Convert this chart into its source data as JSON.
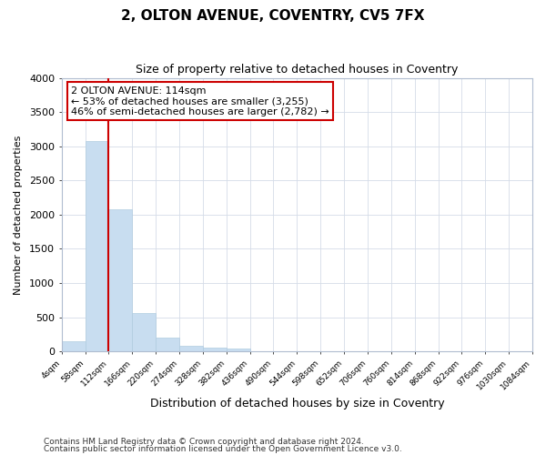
{
  "title1": "2, OLTON AVENUE, COVENTRY, CV5 7FX",
  "title2": "Size of property relative to detached houses in Coventry",
  "xlabel": "Distribution of detached houses by size in Coventry",
  "ylabel": "Number of detached properties",
  "annotation_line1": "2 OLTON AVENUE: 114sqm",
  "annotation_line2": "← 53% of detached houses are smaller (3,255)",
  "annotation_line3": "46% of semi-detached houses are larger (2,782) →",
  "property_line_x": 112,
  "bar_color": "#c8ddf0",
  "bar_edge_color": "#b0cce0",
  "grid_color": "#d4dce8",
  "annotation_box_color": "#ffffff",
  "annotation_box_edge": "#cc0000",
  "vline_color": "#cc0000",
  "footnote1": "Contains HM Land Registry data © Crown copyright and database right 2024.",
  "footnote2": "Contains public sector information licensed under the Open Government Licence v3.0.",
  "bin_edges": [
    4,
    58,
    112,
    166,
    220,
    274,
    328,
    382,
    436,
    490,
    544,
    598,
    652,
    706,
    760,
    814,
    868,
    922,
    976,
    1030,
    1084
  ],
  "bin_counts": [
    150,
    3070,
    2075,
    565,
    200,
    80,
    55,
    45,
    0,
    0,
    0,
    0,
    0,
    0,
    0,
    0,
    0,
    0,
    0,
    0
  ],
  "ylim": [
    0,
    4000
  ],
  "xlim": [
    4,
    1084
  ],
  "background_color": "#ffffff",
  "figsize": [
    6.0,
    5.0
  ],
  "dpi": 100,
  "title1_fontsize": 11,
  "title2_fontsize": 9,
  "xlabel_fontsize": 9,
  "ylabel_fontsize": 8,
  "footnote_fontsize": 6.5,
  "annotation_fontsize": 8
}
